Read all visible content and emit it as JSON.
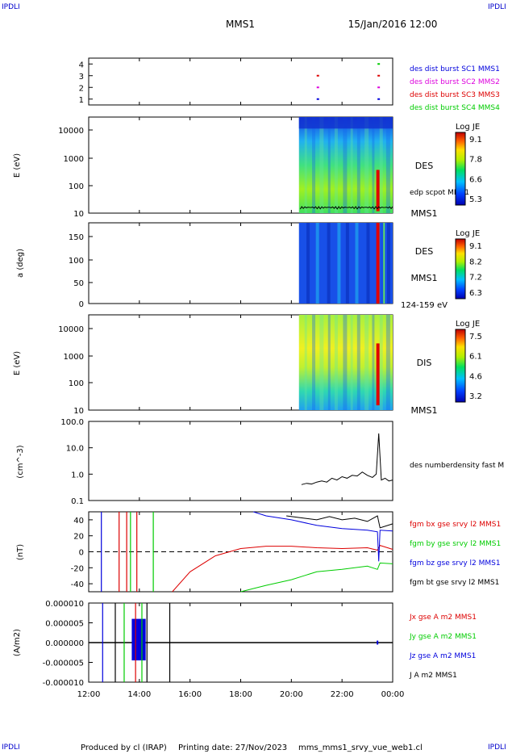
{
  "header": {
    "corner_tl": "IPDLI",
    "corner_tr": "IPDLI",
    "corner_bl": "IPDLI",
    "corner_br": "IPDLI",
    "mission": "MMS1",
    "datetime": "15/Jan/2016 12:00"
  },
  "footer": {
    "produced": "Produced by cl (IRAP)",
    "printing": "Printing date: 27/Nov/2023",
    "file": "mms_mms1_srvy_vue_web1.cl"
  },
  "colors": {
    "blue": "#0000dd",
    "magenta": "#dd00dd",
    "red": "#dd0000",
    "green": "#00cc00",
    "black": "#000000"
  },
  "chart_data": [
    {
      "type": "scatter",
      "panel": "burst",
      "yticks": [
        "4",
        "3",
        "2",
        "1"
      ],
      "legend": [
        {
          "label": "des dist burst SC1 MMS1",
          "color": "#0000dd",
          "y": 1
        },
        {
          "label": "des dist burst SC2 MMS2",
          "color": "#dd00dd",
          "y": 2
        },
        {
          "label": "des dist burst SC3 MMS3",
          "color": "#dd0000",
          "y": 3
        },
        {
          "label": "des dist burst SC4 MMS4",
          "color": "#00cc00",
          "y": 4
        }
      ],
      "points": [
        {
          "x": 21.0,
          "y": 1
        },
        {
          "x": 21.0,
          "y": 2
        },
        {
          "x": 21.0,
          "y": 3
        },
        {
          "x": 23.4,
          "y": 1
        },
        {
          "x": 23.4,
          "y": 2
        },
        {
          "x": 23.4,
          "y": 3
        },
        {
          "x": 23.4,
          "y": 4
        }
      ],
      "ylim": [
        0.5,
        4.5
      ]
    },
    {
      "type": "heatmap",
      "panel": "des-energy",
      "ylabel": "E (eV)",
      "scale": "log",
      "yticks": [
        "10000",
        "1000",
        "100",
        "10"
      ],
      "label": "DES",
      "overlay_label": "edp scpot MMS1",
      "station": "MMS1",
      "colorbar": {
        "title": "Log JE",
        "ticks": [
          "9.1",
          "7.8",
          "6.6",
          "5.3"
        ]
      },
      "coverage": [
        20.3,
        24.0
      ]
    },
    {
      "type": "heatmap",
      "panel": "des-pitch",
      "ylabel": "a (deg)",
      "yticks": [
        "150",
        "100",
        "50",
        "0"
      ],
      "label": "DES",
      "station": "MMS1",
      "energy_range": "124-159 eV",
      "colorbar": {
        "title": "Log JE",
        "ticks": [
          "9.1",
          "8.2",
          "7.2",
          "6.3"
        ]
      },
      "coverage": [
        20.3,
        24.0
      ]
    },
    {
      "type": "heatmap",
      "panel": "dis-energy",
      "ylabel": "E (eV)",
      "scale": "log",
      "yticks": [
        "10000",
        "1000",
        "100",
        "10"
      ],
      "label": "DIS",
      "station": "MMS1",
      "colorbar": {
        "title": "Log JE",
        "ticks": [
          "7.5",
          "6.1",
          "4.6",
          "3.2"
        ]
      },
      "coverage": [
        20.3,
        24.0
      ]
    },
    {
      "type": "line",
      "panel": "density",
      "ylabel": "(cm^-3)",
      "scale": "log",
      "yticks": [
        "100.0",
        "10.0",
        "1.0",
        "0.1"
      ],
      "ylim": [
        0.1,
        100
      ],
      "series": [
        {
          "name": "des numberdensity fast M",
          "color": "#000000",
          "x": [
            20.4,
            20.6,
            20.8,
            21.0,
            21.2,
            21.4,
            21.6,
            21.8,
            22.0,
            22.2,
            22.4,
            22.6,
            22.8,
            23.0,
            23.2,
            23.35,
            23.45,
            23.55,
            23.7,
            23.85,
            24.0
          ],
          "values": [
            0.4,
            0.45,
            0.42,
            0.5,
            0.55,
            0.5,
            0.7,
            0.6,
            0.8,
            0.7,
            0.9,
            0.85,
            1.2,
            0.9,
            0.75,
            1.0,
            35,
            0.6,
            0.7,
            0.55,
            0.6
          ]
        }
      ]
    },
    {
      "type": "line",
      "panel": "magnetic-field",
      "ylabel": "(nT)",
      "yticks": [
        "40",
        "20",
        "0",
        "-20",
        "-40"
      ],
      "ylim": [
        -50,
        50
      ],
      "series": [
        {
          "name": "fgm bx gse srvy l2 MMS1",
          "color": "#dd0000",
          "x": [
            15.3,
            16.0,
            17.0,
            18.0,
            19.0,
            20.0,
            21.0,
            22.0,
            23.0,
            23.4,
            23.5,
            24.0
          ],
          "values": [
            -50,
            -25,
            -5,
            4,
            7,
            7,
            5,
            4,
            5,
            2,
            8,
            3
          ]
        },
        {
          "name": "fgm by gse srvy l2 MMS1",
          "color": "#00cc00",
          "x": [
            18.0,
            19.0,
            20.0,
            20.5,
            21.0,
            22.0,
            23.0,
            23.4,
            23.5,
            24.0
          ],
          "values": [
            -50,
            -42,
            -35,
            -30,
            -25,
            -22,
            -18,
            -22,
            -14,
            -15
          ]
        },
        {
          "name": "fgm bz gse srvy l2 MMS1",
          "color": "#0000dd",
          "x": [
            18.5,
            19.0,
            20.0,
            21.0,
            22.0,
            23.0,
            23.4,
            23.45,
            23.5,
            24.0
          ],
          "values": [
            50,
            45,
            40,
            33,
            29,
            27,
            25,
            -12,
            27,
            26
          ]
        },
        {
          "name": "fgm bt gse srvy l2 MMS1",
          "color": "#000000",
          "x": [
            19.8,
            20.5,
            21.0,
            21.5,
            22.0,
            22.5,
            23.0,
            23.4,
            23.5,
            24.0
          ],
          "values": [
            45,
            42,
            40,
            44,
            40,
            42,
            38,
            45,
            30,
            35
          ]
        }
      ]
    },
    {
      "type": "line",
      "panel": "current-density",
      "ylabel": "(A/m2)",
      "yticks": [
        "0.000010",
        "0.000005",
        "0.000000",
        "-0.000005",
        "-0.000010"
      ],
      "ylim": [
        -1e-05,
        1e-05
      ],
      "series": [
        {
          "name": "Jx gse A m2 MMS1",
          "color": "#dd0000"
        },
        {
          "name": "Jy gse A m2 MMS1",
          "color": "#00cc00"
        },
        {
          "name": "Jz gse A m2 MMS1",
          "color": "#0000dd"
        },
        {
          "name": "J A m2 MMS1",
          "color": "#000000"
        }
      ],
      "xticks": [
        "12:00",
        "14:00",
        "16:00",
        "18:00",
        "20:00",
        "22:00",
        "00:00"
      ],
      "xlim": [
        12,
        24
      ]
    }
  ]
}
